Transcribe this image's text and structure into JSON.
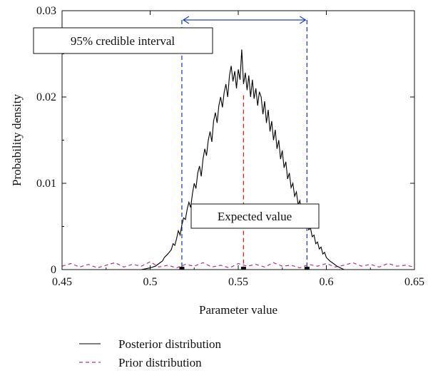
{
  "chart_data": {
    "type": "line",
    "xlabel": "Parameter value",
    "ylabel": "Probability density",
    "xlim": [
      0.45,
      0.65
    ],
    "ylim": [
      0,
      0.03
    ],
    "x_ticks": [
      0.45,
      0.5,
      0.55,
      0.6,
      0.65
    ],
    "x_tick_labels": [
      "0.45",
      "0.5",
      "0.55",
      "0.6",
      "0.65"
    ],
    "y_ticks": [
      0,
      0.01,
      0.02,
      0.03
    ],
    "y_tick_labels": [
      "0",
      "0.01",
      "0.02",
      "0.03"
    ],
    "grid": false,
    "legend_position": "bottom",
    "series": [
      {
        "name": "Posterior distribution",
        "color": "#000000",
        "dash": "solid",
        "x": [
          0.495,
          0.5,
          0.503,
          0.505,
          0.507,
          0.508,
          0.51,
          0.512,
          0.513,
          0.514,
          0.515,
          0.516,
          0.517,
          0.518,
          0.519,
          0.52,
          0.521,
          0.522,
          0.523,
          0.524,
          0.525,
          0.526,
          0.527,
          0.528,
          0.529,
          0.53,
          0.531,
          0.532,
          0.533,
          0.534,
          0.535,
          0.536,
          0.537,
          0.538,
          0.539,
          0.54,
          0.541,
          0.542,
          0.543,
          0.544,
          0.545,
          0.546,
          0.547,
          0.548,
          0.549,
          0.55,
          0.551,
          0.552,
          0.553,
          0.554,
          0.555,
          0.556,
          0.557,
          0.558,
          0.559,
          0.56,
          0.561,
          0.562,
          0.563,
          0.564,
          0.565,
          0.566,
          0.567,
          0.568,
          0.569,
          0.57,
          0.571,
          0.572,
          0.573,
          0.574,
          0.575,
          0.576,
          0.577,
          0.578,
          0.579,
          0.58,
          0.581,
          0.582,
          0.583,
          0.584,
          0.585,
          0.586,
          0.587,
          0.588,
          0.589,
          0.59,
          0.591,
          0.592,
          0.593,
          0.594,
          0.595,
          0.596,
          0.597,
          0.598,
          0.599,
          0.6,
          0.602,
          0.604,
          0.606,
          0.608,
          0.61
        ],
        "y": [
          0.0,
          0.0002,
          0.0004,
          0.0007,
          0.001,
          0.0014,
          0.0018,
          0.0023,
          0.003,
          0.0028,
          0.0036,
          0.0045,
          0.004,
          0.0052,
          0.006,
          0.0058,
          0.007,
          0.0078,
          0.0072,
          0.0088,
          0.01,
          0.0094,
          0.0112,
          0.012,
          0.0108,
          0.0128,
          0.014,
          0.0132,
          0.015,
          0.016,
          0.0148,
          0.0172,
          0.0182,
          0.017,
          0.019,
          0.02,
          0.0188,
          0.0205,
          0.0215,
          0.02,
          0.0225,
          0.0236,
          0.0218,
          0.023,
          0.021,
          0.0232,
          0.022,
          0.0255,
          0.0215,
          0.0228,
          0.0208,
          0.0225,
          0.02,
          0.022,
          0.0198,
          0.021,
          0.019,
          0.0206,
          0.02,
          0.018,
          0.0195,
          0.017,
          0.0185,
          0.016,
          0.0172,
          0.015,
          0.0162,
          0.014,
          0.015,
          0.0128,
          0.0138,
          0.0118,
          0.0125,
          0.0105,
          0.0112,
          0.0095,
          0.01,
          0.0085,
          0.009,
          0.0075,
          0.008,
          0.0065,
          0.007,
          0.0055,
          0.0058,
          0.0046,
          0.0048,
          0.0038,
          0.004,
          0.003,
          0.0032,
          0.0024,
          0.0026,
          0.0018,
          0.002,
          0.0014,
          0.001,
          0.0007,
          0.0004,
          0.0002,
          0.0
        ]
      },
      {
        "name": "Prior distribution",
        "color": "#b0308a",
        "dash": "dashed",
        "x": [
          0.45,
          0.455,
          0.46,
          0.465,
          0.47,
          0.475,
          0.48,
          0.485,
          0.49,
          0.495,
          0.5,
          0.505,
          0.51,
          0.515,
          0.52,
          0.525,
          0.53,
          0.535,
          0.54,
          0.545,
          0.55,
          0.555,
          0.56,
          0.565,
          0.57,
          0.575,
          0.58,
          0.585,
          0.59,
          0.595,
          0.6,
          0.605,
          0.61,
          0.615,
          0.62,
          0.625,
          0.63,
          0.635,
          0.64,
          0.645,
          0.65
        ],
        "y": [
          0.0004,
          0.0007,
          0.0003,
          0.0006,
          0.0002,
          0.0005,
          0.0008,
          0.0003,
          0.0006,
          0.0004,
          0.0009,
          0.0003,
          0.0005,
          0.0002,
          0.0006,
          0.0004,
          0.0008,
          0.0003,
          0.0005,
          0.0002,
          0.0007,
          0.0004,
          0.0006,
          0.0003,
          0.0008,
          0.0004,
          0.0005,
          0.0002,
          0.0006,
          0.0004,
          0.0007,
          0.0003,
          0.0005,
          0.0008,
          0.0004,
          0.0006,
          0.0003,
          0.0007,
          0.0004,
          0.0005,
          0.0003
        ]
      }
    ],
    "annotations": {
      "credible_interval": {
        "label": "95% credible interval",
        "lower": 0.518,
        "upper": 0.589,
        "color": "#1f44c8"
      },
      "expected_value": {
        "label": "Expected value",
        "x": 0.553,
        "y_top": 0.0202,
        "color": "#e02020"
      }
    }
  }
}
